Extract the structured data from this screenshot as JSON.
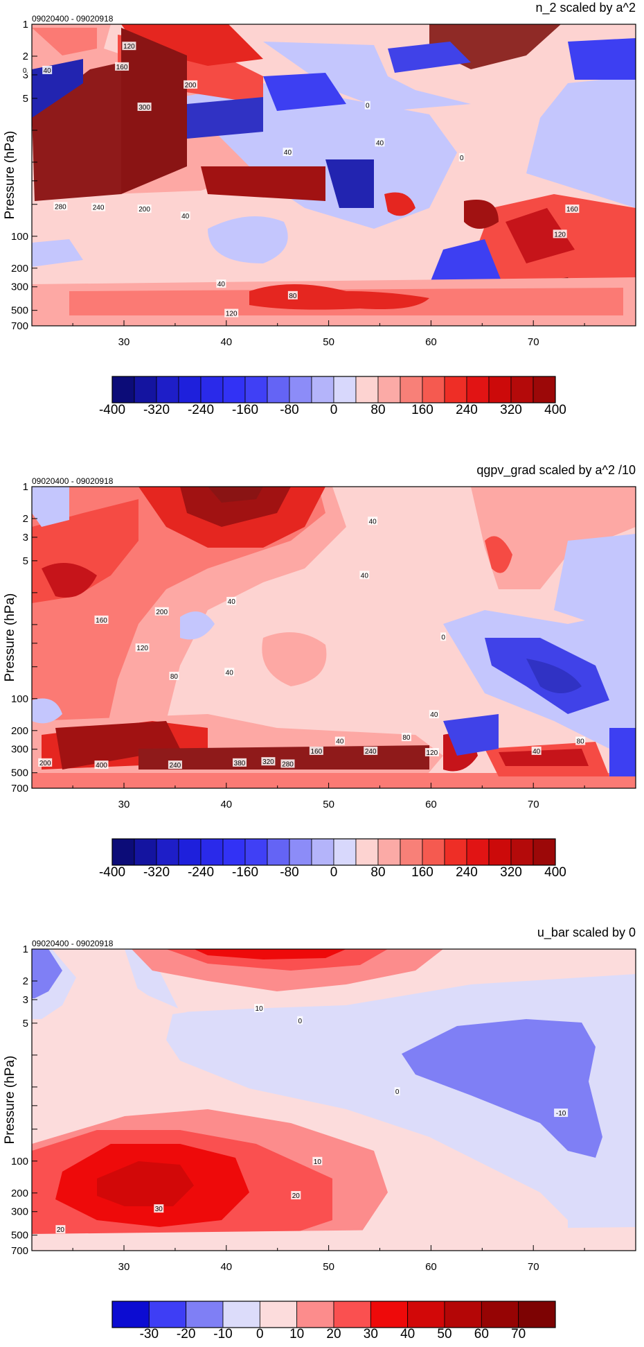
{
  "chart_data": [
    {
      "type": "heatmap",
      "title": "n_2 scaled by a^2",
      "subtitle": "09020400 - 09020918",
      "xlabel": "",
      "ylabel": "Pressure (hPa)",
      "xlim": [
        21,
        80
      ],
      "ylim": [
        700,
        1
      ],
      "y_scale": "log",
      "x_ticks": [
        30,
        40,
        50,
        60,
        70
      ],
      "y_ticks": [
        1,
        2,
        3,
        5,
        10,
        20,
        30,
        50,
        100,
        200,
        300,
        500,
        700
      ],
      "y_tick_labels": [
        "1",
        "2",
        "3",
        "5",
        "",
        "",
        "",
        "",
        "100",
        "200",
        "300",
        "500",
        "700"
      ],
      "colorbar": {
        "levels": [
          -400,
          -360,
          -320,
          -280,
          -240,
          -200,
          -160,
          -120,
          -80,
          -40,
          0,
          40,
          80,
          120,
          160,
          200,
          240,
          280,
          320,
          360,
          400
        ],
        "labels": [
          "-400",
          "-320",
          "-240",
          "-160",
          "-80",
          "0",
          "80",
          "160",
          "240",
          "320",
          "400"
        ]
      },
      "contour_labels": [
        {
          "text": "120",
          "x": 30.5,
          "y": 1.6
        },
        {
          "text": "160",
          "x": 29.8,
          "y": 2.5
        },
        {
          "text": "200",
          "x": 36.5,
          "y": 3.7
        },
        {
          "text": "300",
          "x": 32,
          "y": 6
        },
        {
          "text": "0",
          "x": 20.3,
          "y": 2.7
        },
        {
          "text": "40",
          "x": 22.5,
          "y": 2.7
        },
        {
          "text": "280",
          "x": 23.8,
          "y": 52
        },
        {
          "text": "240",
          "x": 27.5,
          "y": 53
        },
        {
          "text": "200",
          "x": 32,
          "y": 55
        },
        {
          "text": "40",
          "x": 36,
          "y": 64
        },
        {
          "text": "40",
          "x": 39.5,
          "y": 280
        },
        {
          "text": "80",
          "x": 46.5,
          "y": 360
        },
        {
          "text": "120",
          "x": 40.5,
          "y": 530
        },
        {
          "text": "40",
          "x": 46,
          "y": 16
        },
        {
          "text": "0",
          "x": 53.8,
          "y": 5.8
        },
        {
          "text": "40",
          "x": 55,
          "y": 13
        },
        {
          "text": "0",
          "x": 63,
          "y": 18
        },
        {
          "text": "160",
          "x": 73.8,
          "y": 55
        },
        {
          "text": "120",
          "x": 72.6,
          "y": 95
        }
      ]
    },
    {
      "type": "heatmap",
      "title": "qgpv_grad scaled by a^2 /10",
      "subtitle": "09020400 - 09020918",
      "xlabel": "",
      "ylabel": "Pressure (hPa)",
      "xlim": [
        21,
        80
      ],
      "ylim": [
        700,
        1
      ],
      "y_scale": "log",
      "x_ticks": [
        30,
        40,
        50,
        60,
        70
      ],
      "y_ticks": [
        1,
        2,
        3,
        5,
        10,
        20,
        30,
        50,
        100,
        200,
        300,
        500,
        700
      ],
      "y_tick_labels": [
        "1",
        "2",
        "3",
        "5",
        "",
        "",
        "",
        "",
        "100",
        "200",
        "300",
        "500",
        "700"
      ],
      "colorbar": {
        "levels": [
          -400,
          -360,
          -320,
          -280,
          -240,
          -200,
          -160,
          -120,
          -80,
          -40,
          0,
          40,
          80,
          120,
          160,
          200,
          240,
          280,
          320,
          360,
          400
        ],
        "labels": [
          "-400",
          "-320",
          "-240",
          "-160",
          "-80",
          "0",
          "80",
          "160",
          "240",
          "320",
          "400"
        ]
      },
      "contour_labels": [
        {
          "text": "40",
          "x": 54.3,
          "y": 2.1
        },
        {
          "text": "40",
          "x": 53.5,
          "y": 6.8
        },
        {
          "text": "40",
          "x": 40.5,
          "y": 12
        },
        {
          "text": "200",
          "x": 33.7,
          "y": 15
        },
        {
          "text": "160",
          "x": 27.8,
          "y": 18
        },
        {
          "text": "120",
          "x": 31.8,
          "y": 33
        },
        {
          "text": "80",
          "x": 34.9,
          "y": 61
        },
        {
          "text": "40",
          "x": 40.3,
          "y": 56
        },
        {
          "text": "0",
          "x": 61.2,
          "y": 26
        },
        {
          "text": "40",
          "x": 60.3,
          "y": 140
        },
        {
          "text": "80",
          "x": 74.6,
          "y": 250
        },
        {
          "text": "40",
          "x": 70.3,
          "y": 310
        },
        {
          "text": "40",
          "x": 51.1,
          "y": 250
        },
        {
          "text": "80",
          "x": 57.6,
          "y": 230
        },
        {
          "text": "160",
          "x": 48.8,
          "y": 310
        },
        {
          "text": "240",
          "x": 54.1,
          "y": 310
        },
        {
          "text": "120",
          "x": 60.1,
          "y": 320
        },
        {
          "text": "400",
          "x": 27.8,
          "y": 420
        },
        {
          "text": "240",
          "x": 35,
          "y": 420
        },
        {
          "text": "320",
          "x": 44.1,
          "y": 390
        },
        {
          "text": "380",
          "x": 41.3,
          "y": 400
        },
        {
          "text": "280",
          "x": 46,
          "y": 410
        },
        {
          "text": "200",
          "x": 22.3,
          "y": 400
        }
      ]
    },
    {
      "type": "heatmap",
      "title": "u_bar scaled by 0",
      "subtitle": "09020400 - 09020918",
      "xlabel": "",
      "ylabel": "Pressure (hPa)",
      "xlim": [
        21,
        80
      ],
      "ylim": [
        700,
        1
      ],
      "y_scale": "log",
      "x_ticks": [
        30,
        40,
        50,
        60,
        70
      ],
      "y_ticks": [
        1,
        2,
        3,
        5,
        10,
        20,
        30,
        50,
        100,
        200,
        300,
        500,
        700
      ],
      "y_tick_labels": [
        "1",
        "2",
        "3",
        "5",
        "",
        "",
        "",
        "",
        "100",
        "200",
        "300",
        "500",
        "700"
      ],
      "colorbar": {
        "levels": [
          -40,
          -30,
          -20,
          -10,
          0,
          10,
          20,
          30,
          40,
          50,
          60,
          70,
          80
        ],
        "labels": [
          "-30",
          "-20",
          "-10",
          "0",
          "10",
          "20",
          "30",
          "40",
          "50",
          "60",
          "70"
        ]
      },
      "contour_labels": [
        {
          "text": "10",
          "x": 43.2,
          "y": 3.6
        },
        {
          "text": "0",
          "x": 47.2,
          "y": 4.7
        },
        {
          "text": "-10",
          "x": 72.7,
          "y": 35
        },
        {
          "text": "0",
          "x": 56.7,
          "y": 22
        },
        {
          "text": "10",
          "x": 48.9,
          "y": 100
        },
        {
          "text": "20",
          "x": 46.8,
          "y": 210
        },
        {
          "text": "30",
          "x": 33.4,
          "y": 280
        },
        {
          "text": "20",
          "x": 23.8,
          "y": 440
        }
      ]
    }
  ]
}
